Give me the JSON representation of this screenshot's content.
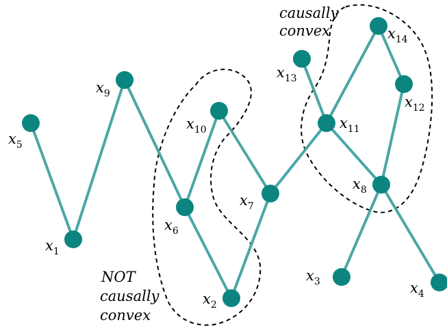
{
  "nodes": [
    {
      "id": "x1",
      "base": "x",
      "sub": "1"
    },
    {
      "id": "x2",
      "base": "x",
      "sub": "2"
    },
    {
      "id": "x3",
      "base": "x",
      "sub": "3"
    },
    {
      "id": "x4",
      "base": "x",
      "sub": "4"
    },
    {
      "id": "x5",
      "base": "x",
      "sub": "5"
    },
    {
      "id": "x6",
      "base": "x",
      "sub": "6"
    },
    {
      "id": "x7",
      "base": "x",
      "sub": "7"
    },
    {
      "id": "x8",
      "base": "x",
      "sub": "8"
    },
    {
      "id": "x9",
      "base": "x",
      "sub": "9"
    },
    {
      "id": "x10",
      "base": "x",
      "sub": "10"
    },
    {
      "id": "x11",
      "base": "x",
      "sub": "11"
    },
    {
      "id": "x12",
      "base": "x",
      "sub": "12"
    },
    {
      "id": "x13",
      "base": "x",
      "sub": "13"
    },
    {
      "id": "x14",
      "base": "x",
      "sub": "14"
    }
  ],
  "edges": [
    [
      "x5",
      "x1"
    ],
    [
      "x1",
      "x9"
    ],
    [
      "x9",
      "x6"
    ],
    [
      "x6",
      "x10"
    ],
    [
      "x6",
      "x2"
    ],
    [
      "x10",
      "x7"
    ],
    [
      "x2",
      "x7"
    ],
    [
      "x7",
      "x11"
    ],
    [
      "x13",
      "x11"
    ],
    [
      "x11",
      "x14"
    ],
    [
      "x14",
      "x12"
    ],
    [
      "x11",
      "x8"
    ],
    [
      "x12",
      "x8"
    ],
    [
      "x8",
      "x3"
    ],
    [
      "x8",
      "x4"
    ]
  ],
  "regions": {
    "convex": {
      "lines": [
        "causally",
        "convex"
      ]
    },
    "not_convex": {
      "lines": [
        "NOT",
        "causally",
        "convex"
      ]
    }
  },
  "colors": {
    "node": "#0c8580",
    "edge": "#4ca6a6",
    "region_outline": "#000000"
  }
}
